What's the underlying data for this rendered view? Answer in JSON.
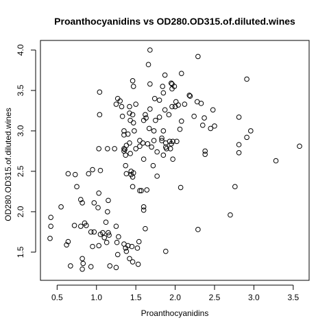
{
  "chart_data": {
    "type": "scatter",
    "title": "Proanthocyanidins vs OD280.OD315.of.diluted.wines",
    "xlabel": "Proanthocyanidins",
    "ylabel": "OD280.OD315.of.diluted.wines",
    "xlim": [
      0.41,
      3.58
    ],
    "ylim": [
      1.27,
      4.0
    ],
    "x_ticks": [
      0.5,
      1.0,
      1.5,
      2.0,
      2.5,
      3.0,
      3.5
    ],
    "x_tick_labels": [
      "0.5",
      "1.0",
      "1.5",
      "2.0",
      "2.5",
      "3.0",
      "3.5"
    ],
    "y_ticks": [
      1.5,
      2.0,
      2.5,
      3.0,
      3.5,
      4.0
    ],
    "y_tick_labels": [
      "1.5",
      "2.0",
      "2.5",
      "3.0",
      "3.5",
      "4.0"
    ],
    "grid": false,
    "legend": "none",
    "marker": "open-circle",
    "color": "#000000",
    "points": [
      [
        0.42,
        1.93
      ],
      [
        0.42,
        1.82
      ],
      [
        0.41,
        1.67
      ],
      [
        0.55,
        2.06
      ],
      [
        0.62,
        1.59
      ],
      [
        0.64,
        1.63
      ],
      [
        0.64,
        2.47
      ],
      [
        0.67,
        1.33
      ],
      [
        0.73,
        2.46
      ],
      [
        0.72,
        1.83
      ],
      [
        0.75,
        2.31
      ],
      [
        0.8,
        1.82
      ],
      [
        0.8,
        2.15
      ],
      [
        0.82,
        2.11
      ],
      [
        0.83,
        1.36
      ],
      [
        0.82,
        1.42
      ],
      [
        0.82,
        1.29
      ],
      [
        0.85,
        1.86
      ],
      [
        0.87,
        1.83
      ],
      [
        0.9,
        2.47
      ],
      [
        0.93,
        1.75
      ],
      [
        0.95,
        2.52
      ],
      [
        0.95,
        1.57
      ],
      [
        0.93,
        1.32
      ],
      [
        0.97,
        1.75
      ],
      [
        0.97,
        2.11
      ],
      [
        1.02,
        2.05
      ],
      [
        1.03,
        2.23
      ],
      [
        1.05,
        2.51
      ],
      [
        1.05,
        1.72
      ],
      [
        1.03,
        1.58
      ],
      [
        1.08,
        1.74
      ],
      [
        1.1,
        1.68
      ],
      [
        1.12,
        1.87
      ],
      [
        1.14,
        2.0
      ],
      [
        1.15,
        2.14
      ],
      [
        1.15,
        1.74
      ],
      [
        1.16,
        1.71
      ],
      [
        1.17,
        1.33
      ],
      [
        1.13,
        1.62
      ],
      [
        1.25,
        1.82
      ],
      [
        1.28,
        1.69
      ],
      [
        1.26,
        1.62
      ],
      [
        1.27,
        1.47
      ],
      [
        1.25,
        1.31
      ],
      [
        1.35,
        1.6
      ],
      [
        1.37,
        1.55
      ],
      [
        1.38,
        1.51
      ],
      [
        1.4,
        1.58
      ],
      [
        1.42,
        1.42
      ],
      [
        1.45,
        1.57
      ],
      [
        1.46,
        1.38
      ],
      [
        1.53,
        1.35
      ],
      [
        1.52,
        1.55
      ],
      [
        1.54,
        1.63
      ],
      [
        1.6,
        2.06
      ],
      [
        1.6,
        2.02
      ],
      [
        1.62,
        1.79
      ],
      [
        1.88,
        1.51
      ],
      [
        1.03,
        2.78
      ],
      [
        1.04,
        3.48
      ],
      [
        1.04,
        3.2
      ],
      [
        1.14,
        2.78
      ],
      [
        1.23,
        2.78
      ],
      [
        1.25,
        3.33
      ],
      [
        1.27,
        3.4
      ],
      [
        1.3,
        3.37
      ],
      [
        1.32,
        3.3
      ],
      [
        1.33,
        3.18
      ],
      [
        1.35,
        3.0
      ],
      [
        1.35,
        2.95
      ],
      [
        1.35,
        2.78
      ],
      [
        1.36,
        2.77
      ],
      [
        1.35,
        2.75
      ],
      [
        1.37,
        2.7
      ],
      [
        1.38,
        2.82
      ],
      [
        1.4,
        2.96
      ],
      [
        1.37,
        2.57
      ],
      [
        1.38,
        2.47
      ],
      [
        1.42,
        3.3
      ],
      [
        1.42,
        3.22
      ],
      [
        1.43,
        3.13
      ],
      [
        1.42,
        2.85
      ],
      [
        1.43,
        2.72
      ],
      [
        1.44,
        2.5
      ],
      [
        1.44,
        2.46
      ],
      [
        1.46,
        2.43
      ],
      [
        1.46,
        2.31
      ],
      [
        1.47,
        2.48
      ],
      [
        1.47,
        3.55
      ],
      [
        1.46,
        3.62
      ],
      [
        1.46,
        3.2
      ],
      [
        1.47,
        3.1
      ],
      [
        1.48,
        3.0
      ],
      [
        1.5,
        2.78
      ],
      [
        1.5,
        3.33
      ],
      [
        1.55,
        2.88
      ],
      [
        1.55,
        2.81
      ],
      [
        1.57,
        2.26
      ],
      [
        1.55,
        2.26
      ],
      [
        1.59,
        2.85
      ],
      [
        1.6,
        2.65
      ],
      [
        1.6,
        3.13
      ],
      [
        1.62,
        3.2
      ],
      [
        1.63,
        3.16
      ],
      [
        1.64,
        2.27
      ],
      [
        1.65,
        2.84
      ],
      [
        1.66,
        3.82
      ],
      [
        1.67,
        3.03
      ],
      [
        1.68,
        4.0
      ],
      [
        1.68,
        3.58
      ],
      [
        1.68,
        3.27
      ],
      [
        1.7,
        2.8
      ],
      [
        1.72,
        2.57
      ],
      [
        1.73,
        3.0
      ],
      [
        1.73,
        2.88
      ],
      [
        1.74,
        3.4
      ],
      [
        1.75,
        3.13
      ],
      [
        1.77,
        2.74
      ],
      [
        1.77,
        2.44
      ],
      [
        1.8,
        3.38
      ],
      [
        1.8,
        3.17
      ],
      [
        1.83,
        2.91
      ],
      [
        1.83,
        2.88
      ],
      [
        1.84,
        3.55
      ],
      [
        1.85,
        3.47
      ],
      [
        1.85,
        3.0
      ],
      [
        1.85,
        2.7
      ],
      [
        1.87,
        3.69
      ],
      [
        1.87,
        3.26
      ],
      [
        1.88,
        2.85
      ],
      [
        1.88,
        2.8
      ],
      [
        1.89,
        2.78
      ],
      [
        1.92,
        3.2
      ],
      [
        1.93,
        2.87
      ],
      [
        1.94,
        2.78
      ],
      [
        1.95,
        2.84
      ],
      [
        1.95,
        3.59
      ],
      [
        1.96,
        3.58
      ],
      [
        1.96,
        3.52
      ],
      [
        1.96,
        3.3
      ],
      [
        1.97,
        2.65
      ],
      [
        1.97,
        2.87
      ],
      [
        1.99,
        3.55
      ],
      [
        2.0,
        3.3
      ],
      [
        2.01,
        3.36
      ],
      [
        2.02,
        2.87
      ],
      [
        2.04,
        3.32
      ],
      [
        2.06,
        3.02
      ],
      [
        2.07,
        2.3
      ],
      [
        2.08,
        3.12
      ],
      [
        2.08,
        3.71
      ],
      [
        2.12,
        3.33
      ],
      [
        2.18,
        3.44
      ],
      [
        2.19,
        3.43
      ],
      [
        2.24,
        3.18
      ],
      [
        2.28,
        3.36
      ],
      [
        2.29,
        3.92
      ],
      [
        2.29,
        1.78
      ],
      [
        2.33,
        3.34
      ],
      [
        2.35,
        3.07
      ],
      [
        2.37,
        3.16
      ],
      [
        2.38,
        2.71
      ],
      [
        2.38,
        2.75
      ],
      [
        2.45,
        3.03
      ],
      [
        2.48,
        3.26
      ],
      [
        2.5,
        3.06
      ],
      [
        2.7,
        1.96
      ],
      [
        2.76,
        2.31
      ],
      [
        2.81,
        3.17
      ],
      [
        2.81,
        2.83
      ],
      [
        2.81,
        2.73
      ],
      [
        2.91,
        3.64
      ],
      [
        2.91,
        2.92
      ],
      [
        2.96,
        3.0
      ],
      [
        3.28,
        2.63
      ],
      [
        3.58,
        2.81
      ]
    ]
  }
}
